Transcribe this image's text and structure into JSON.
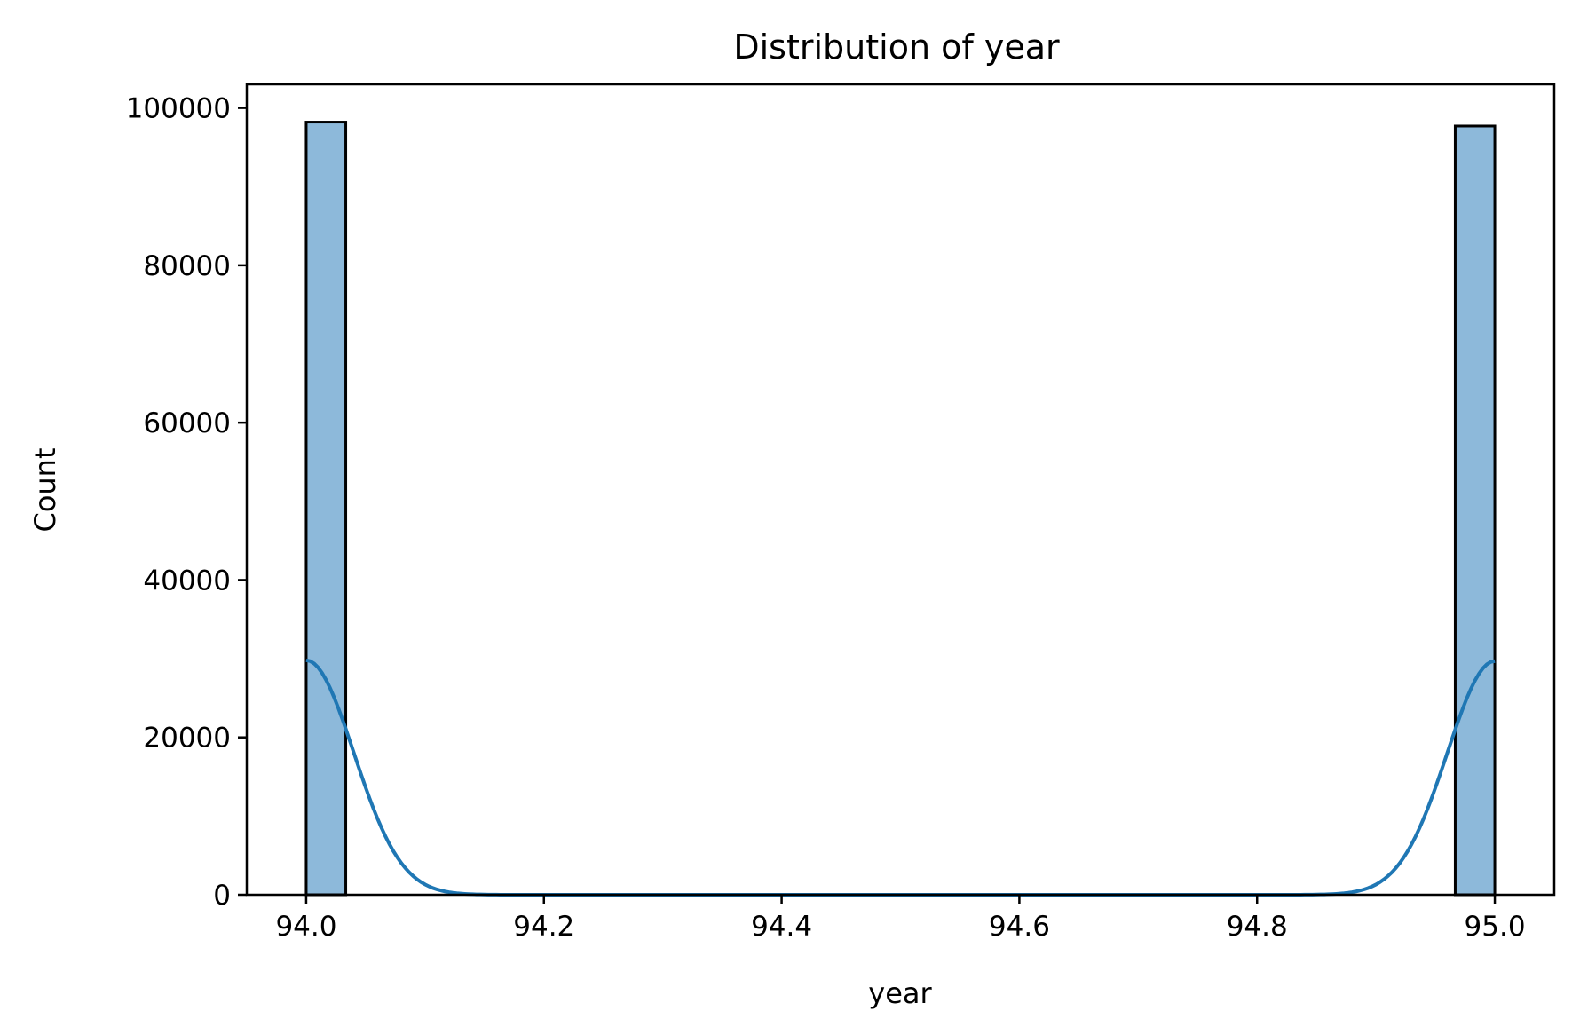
{
  "chart_data": {
    "type": "bar",
    "subtype": "histogram-with-kde",
    "title": "Distribution of year",
    "xlabel": "year",
    "ylabel": "Count",
    "xlim": [
      93.95,
      95.05
    ],
    "ylim": [
      0,
      103000
    ],
    "grid": false,
    "x_ticks": [
      94.0,
      94.2,
      94.4,
      94.6,
      94.8,
      95.0
    ],
    "x_tick_labels": [
      "94.0",
      "94.2",
      "94.4",
      "94.6",
      "94.8",
      "95.0"
    ],
    "y_ticks": [
      0,
      20000,
      40000,
      60000,
      80000,
      100000
    ],
    "y_tick_labels": [
      "0",
      "20000",
      "40000",
      "60000",
      "80000",
      "100000"
    ],
    "bins": [
      {
        "x_start": 94.0,
        "x_end": 94.0333,
        "count": 98200
      },
      {
        "x_start": 94.9667,
        "x_end": 95.0,
        "count": 97700
      }
    ],
    "kde": {
      "peaks": [
        {
          "x": 94.0,
          "height": 29800,
          "bandwidth": 0.04
        },
        {
          "x": 95.0,
          "height": 29700,
          "bandwidth": 0.04
        }
      ],
      "x_range": [
        94.0,
        95.0
      ]
    },
    "colors": {
      "bar_fill": "#8db9da",
      "bar_edge": "#000000",
      "kde_line": "#1f77b4"
    }
  }
}
